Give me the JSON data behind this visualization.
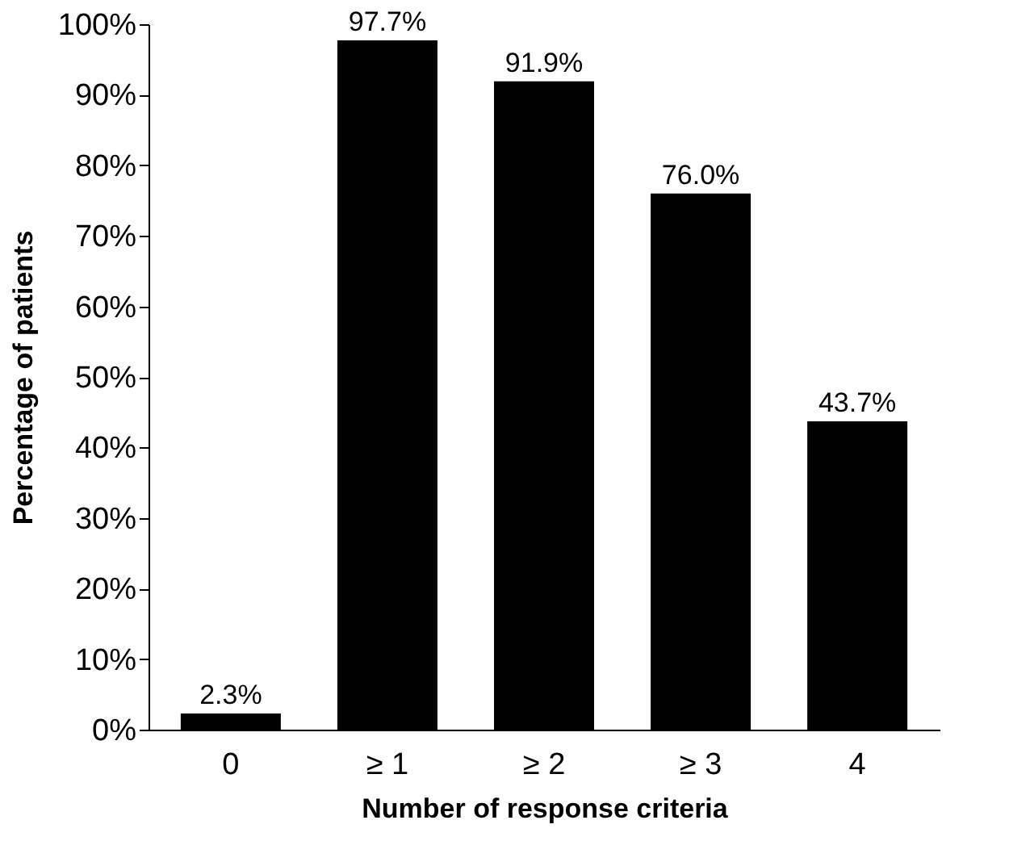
{
  "chart_data": {
    "type": "bar",
    "xlabel": "Number of response criteria",
    "ylabel": "Percentage of patients",
    "categories": [
      "0",
      "≥ 1",
      "≥ 2",
      "≥ 3",
      "4"
    ],
    "values": [
      2.3,
      97.7,
      91.9,
      76.0,
      43.7
    ],
    "value_labels": [
      "2.3%",
      "97.7%",
      "91.9%",
      "76.0%",
      "43.7%"
    ],
    "color": "#000000",
    "ylim": [
      0,
      100
    ],
    "yticks": [
      {
        "value": 0,
        "label": "0%"
      },
      {
        "value": 10,
        "label": "10%"
      },
      {
        "value": 20,
        "label": "20%"
      },
      {
        "value": 30,
        "label": "30%"
      },
      {
        "value": 40,
        "label": "40%"
      },
      {
        "value": 50,
        "label": "50%"
      },
      {
        "value": 60,
        "label": "60%"
      },
      {
        "value": 70,
        "label": "70%"
      },
      {
        "value": 80,
        "label": "80%"
      },
      {
        "value": 90,
        "label": "90%"
      },
      {
        "value": 100,
        "label": "100%"
      }
    ],
    "grid": false
  }
}
